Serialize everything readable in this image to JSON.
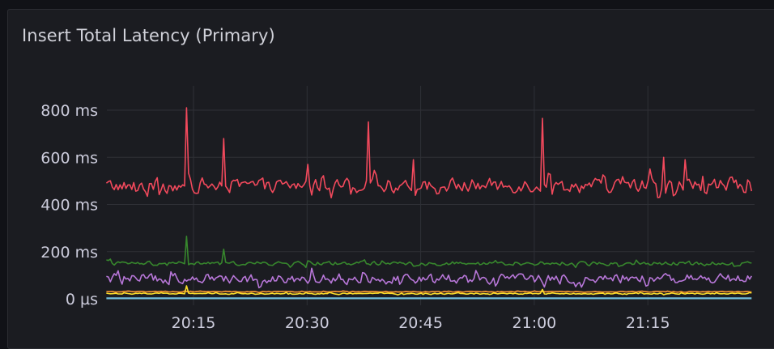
{
  "panel": {
    "title": "Insert Total Latency (Primary)"
  },
  "theme": {
    "page_bg": "#111217",
    "panel_bg": "#1b1c21",
    "grid": "#2f3036",
    "text": "#ccccdc"
  },
  "chart_data": {
    "type": "line",
    "title": "Insert Total Latency (Primary)",
    "xlabel": "",
    "ylabel": "",
    "y_unit": "ms",
    "ylim": [
      0,
      800
    ],
    "y_ticks": [
      {
        "value": 0,
        "label": "0 µs"
      },
      {
        "value": 200,
        "label": "200 ms"
      },
      {
        "value": 400,
        "label": "400 ms"
      },
      {
        "value": 600,
        "label": "600 ms"
      },
      {
        "value": 800,
        "label": "800 ms"
      }
    ],
    "x_range": [
      "20:03",
      "21:29"
    ],
    "x_ticks": [
      "20:15",
      "20:30",
      "20:45",
      "21:00",
      "21:15"
    ],
    "grid": true,
    "legend": "hidden",
    "series": [
      {
        "name": "series-red",
        "color": "#f2495c",
        "baseline_ms": 480,
        "noise_ms": 35,
        "spikes": [
          {
            "time": "20:14",
            "value": 810
          },
          {
            "time": "20:19",
            "value": 680
          },
          {
            "time": "20:30",
            "value": 570
          },
          {
            "time": "20:38",
            "value": 750
          },
          {
            "time": "20:44",
            "value": 590
          },
          {
            "time": "21:01",
            "value": 765
          },
          {
            "time": "21:17",
            "value": 600
          },
          {
            "time": "21:20",
            "value": 590
          }
        ]
      },
      {
        "name": "series-green",
        "color": "#37872d",
        "baseline_ms": 150,
        "noise_ms": 10,
        "spikes": [
          {
            "time": "20:14",
            "value": 265
          },
          {
            "time": "20:19",
            "value": 210
          }
        ]
      },
      {
        "name": "series-purple",
        "color": "#b877d9",
        "baseline_ms": 85,
        "noise_ms": 25,
        "spikes": []
      },
      {
        "name": "series-orange",
        "color": "#ff9830",
        "baseline_ms": 30,
        "noise_ms": 2,
        "spikes": []
      },
      {
        "name": "series-yellow",
        "color": "#fade2a",
        "baseline_ms": 22,
        "noise_ms": 3,
        "spikes": [
          {
            "time": "20:14",
            "value": 55
          },
          {
            "time": "21:01",
            "value": 40
          }
        ]
      },
      {
        "name": "series-blue",
        "color": "#73bfdc",
        "baseline_ms": 2,
        "noise_ms": 0,
        "spikes": []
      }
    ]
  }
}
